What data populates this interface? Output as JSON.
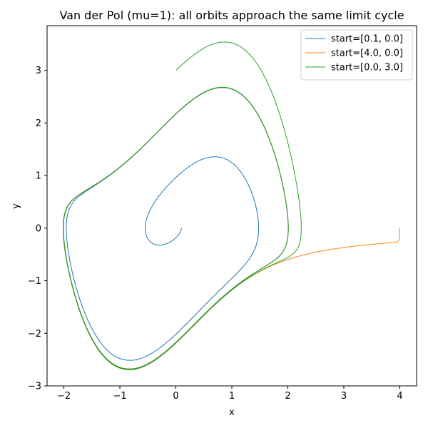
{
  "chart_data": {
    "type": "line",
    "title": "Van der Pol (mu=1): all orbits approach the same limit cycle",
    "xlabel": "x",
    "ylabel": "y",
    "xlim": [
      -2.3,
      4.3
    ],
    "ylim": [
      -3.0,
      3.85
    ],
    "xticks": [
      -2,
      -1,
      0,
      1,
      2,
      3,
      4
    ],
    "yticks": [
      -3,
      -2,
      -1,
      0,
      1,
      2,
      3
    ],
    "xtick_labels": [
      "−2",
      "−1",
      "0",
      "1",
      "2",
      "3",
      "4"
    ],
    "ytick_labels": [
      "−3",
      "−2",
      "−1",
      "0",
      "1",
      "2",
      "3"
    ],
    "grid": false,
    "legend_position": "upper right",
    "mu": 1,
    "series": [
      {
        "name": "start=[0.1, 0.0]",
        "color": "#1f77b4",
        "x0": 0.1,
        "y0": 0.0
      },
      {
        "name": "start=[4.0, 0.0]",
        "color": "#ff7f0e",
        "x0": 4.0,
        "y0": 0.0
      },
      {
        "name": "start=[0.0, 3.0]",
        "color": "#2ca02c",
        "x0": 0.0,
        "y0": 3.0
      }
    ]
  }
}
